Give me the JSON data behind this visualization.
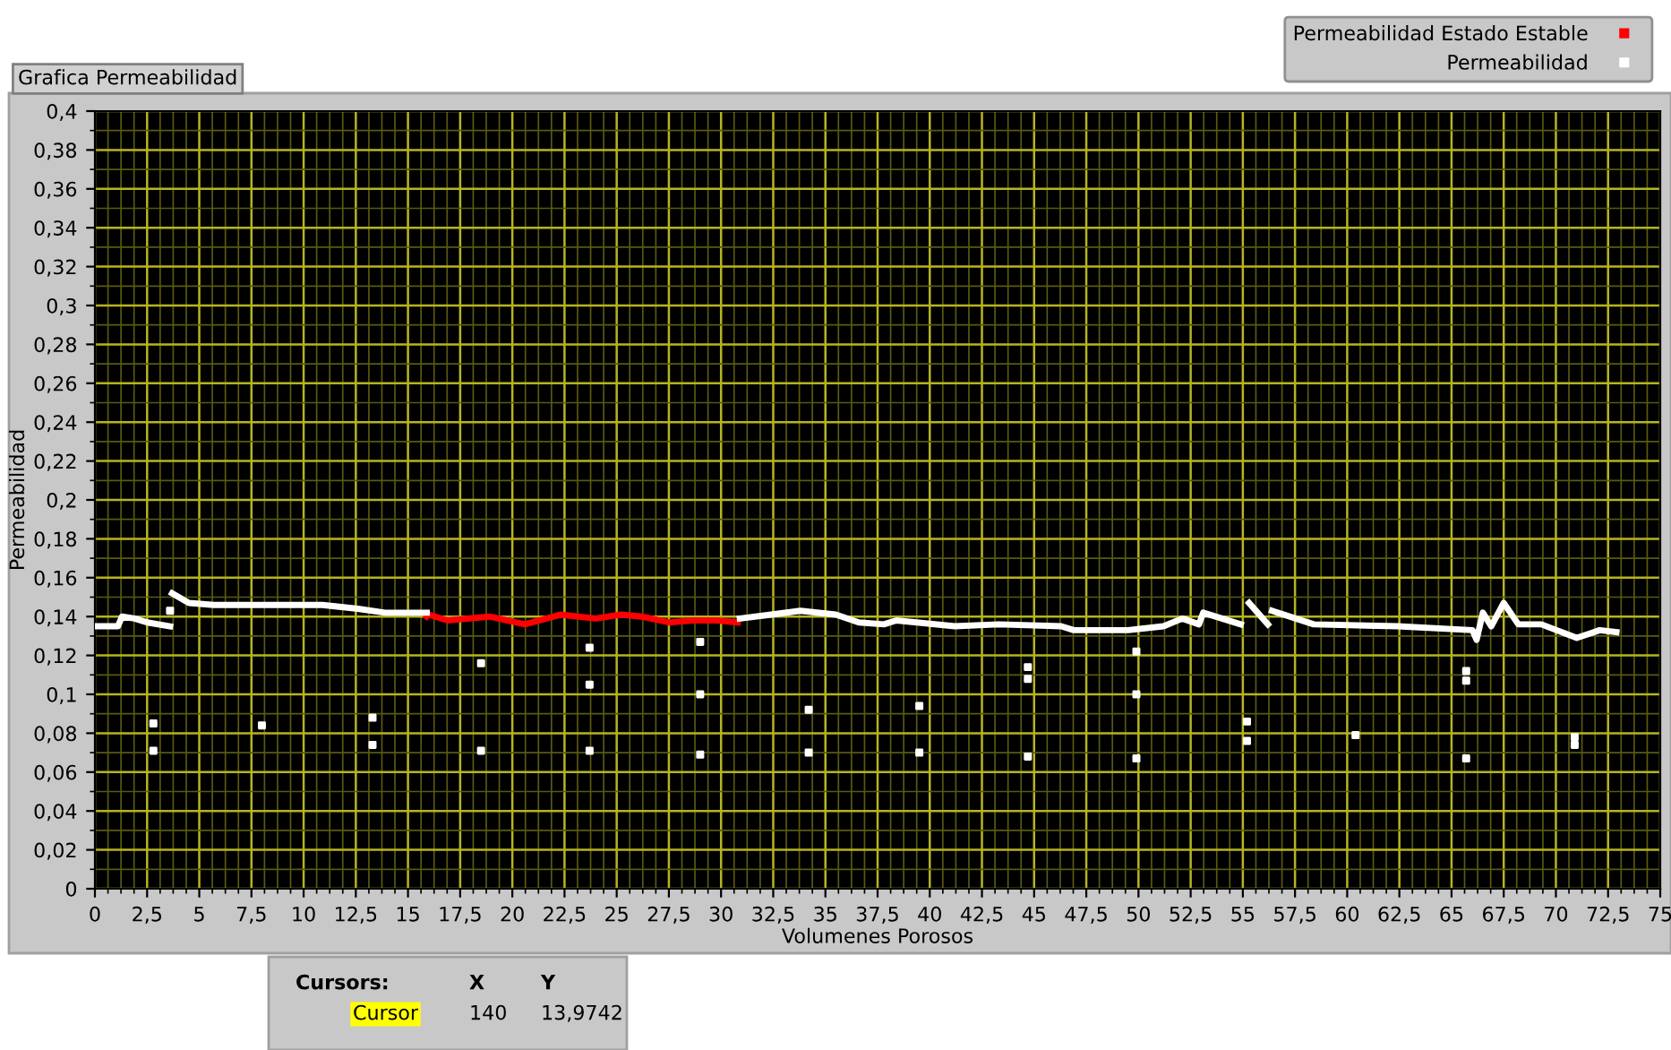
{
  "chart_data": {
    "type": "line",
    "title": "Grafica Permeabilidad",
    "xlabel": "Volumenes Porosos",
    "ylabel": "Permeabilidad",
    "xlim": [
      0,
      75
    ],
    "ylim": [
      0,
      0.4
    ],
    "xticks": [
      0,
      {
        "value": 2.5,
        "label": "2,5"
      },
      5,
      {
        "value": 7.5,
        "label": "7,5"
      },
      10,
      {
        "value": 12.5,
        "label": "12,5"
      },
      15,
      {
        "value": 17.5,
        "label": "17,5"
      },
      20,
      {
        "value": 22.5,
        "label": "22,5"
      },
      25,
      {
        "value": 27.5,
        "label": "27,5"
      },
      30,
      {
        "value": 32.5,
        "label": "32,5"
      },
      35,
      {
        "value": 37.5,
        "label": "37,5"
      },
      40,
      {
        "value": 42.5,
        "label": "42,5"
      },
      45,
      {
        "value": 47.5,
        "label": "47,5"
      },
      50,
      {
        "value": 52.5,
        "label": "52,5"
      },
      55,
      {
        "value": 57.5,
        "label": "57,5"
      },
      60,
      {
        "value": 62.5,
        "label": "62,5"
      },
      65,
      {
        "value": 67.5,
        "label": "67,5"
      },
      70,
      {
        "value": 72.5,
        "label": "72,5"
      },
      75,
      {
        "value": 0.625,
        "label": null
      },
      {
        "value": 1.25,
        "label": null
      },
      {
        "value": 1.875,
        "label": null
      },
      {
        "value": 3.125,
        "label": null
      },
      {
        "value": 3.75,
        "label": null
      },
      {
        "value": 4.375,
        "label": null
      },
      {
        "value": 5.625,
        "label": null
      },
      {
        "value": 6.25,
        "label": null
      },
      {
        "value": 6.875,
        "label": null
      },
      {
        "value": 8.125,
        "label": null
      },
      {
        "value": 8.75,
        "label": null
      },
      {
        "value": 9.375,
        "label": null
      },
      {
        "value": 10.625,
        "label": null
      },
      {
        "value": 11.25,
        "label": null
      },
      {
        "value": 11.875,
        "label": null
      },
      {
        "value": 13.125,
        "label": null
      },
      {
        "value": 13.75,
        "label": null
      },
      {
        "value": 14.375,
        "label": null
      },
      {
        "value": 15.625,
        "label": null
      },
      {
        "value": 16.25,
        "label": null
      },
      {
        "value": 16.875,
        "label": null
      },
      {
        "value": 18.125,
        "label": null
      },
      {
        "value": 18.75,
        "label": null
      },
      {
        "value": 19.375,
        "label": null
      },
      {
        "value": 20.625,
        "label": null
      },
      {
        "value": 21.25,
        "label": null
      },
      {
        "value": 21.875,
        "label": null
      },
      {
        "value": 23.125,
        "label": null
      },
      {
        "value": 23.75,
        "label": null
      },
      {
        "value": 24.375,
        "label": null
      },
      {
        "value": 25.625,
        "label": null
      },
      {
        "value": 26.25,
        "label": null
      },
      {
        "value": 26.875,
        "label": null
      },
      {
        "value": 28.125,
        "label": null
      },
      {
        "value": 28.75,
        "label": null
      },
      {
        "value": 29.375,
        "label": null
      },
      {
        "value": 30.625,
        "label": null
      },
      {
        "value": 31.25,
        "label": null
      },
      {
        "value": 31.875,
        "label": null
      },
      {
        "value": 33.125,
        "label": null
      },
      {
        "value": 33.75,
        "label": null
      },
      {
        "value": 34.375,
        "label": null
      },
      {
        "value": 35.625,
        "label": null
      },
      {
        "value": 36.25,
        "label": null
      },
      {
        "value": 36.875,
        "label": null
      },
      {
        "value": 38.125,
        "label": null
      },
      {
        "value": 38.75,
        "label": null
      },
      {
        "value": 39.375,
        "label": null
      },
      {
        "value": 40.625,
        "label": null
      },
      {
        "value": 41.25,
        "label": null
      },
      {
        "value": 41.875,
        "label": null
      },
      {
        "value": 43.125,
        "label": null
      },
      {
        "value": 43.75,
        "label": null
      },
      {
        "value": 44.375,
        "label": null
      },
      {
        "value": 45.625,
        "label": null
      },
      {
        "value": 46.25,
        "label": null
      },
      {
        "value": 46.875,
        "label": null
      },
      {
        "value": 48.125,
        "label": null
      },
      {
        "value": 48.75,
        "label": null
      },
      {
        "value": 49.375,
        "label": null
      },
      {
        "value": 50.625,
        "label": null
      },
      {
        "value": 51.25,
        "label": null
      },
      {
        "value": 51.875,
        "label": null
      },
      {
        "value": 53.125,
        "label": null
      },
      {
        "value": 53.75,
        "label": null
      },
      {
        "value": 54.375,
        "label": null
      },
      {
        "value": 55.625,
        "label": null
      },
      {
        "value": 56.25,
        "label": null
      },
      {
        "value": 56.875,
        "label": null
      },
      {
        "value": 58.125,
        "label": null
      },
      {
        "value": 58.75,
        "label": null
      },
      {
        "value": 59.375,
        "label": null
      },
      {
        "value": 60.625,
        "label": null
      },
      {
        "value": 61.25,
        "label": null
      },
      {
        "value": 61.875,
        "label": null
      },
      {
        "value": 63.125,
        "label": null
      },
      {
        "value": 63.75,
        "label": null
      },
      {
        "value": 64.375,
        "label": null
      },
      {
        "value": 65.625,
        "label": null
      },
      {
        "value": 66.25,
        "label": null
      },
      {
        "value": 66.875,
        "label": null
      },
      {
        "value": 68.125,
        "label": null
      },
      {
        "value": 68.75,
        "label": null
      },
      {
        "value": 69.375,
        "label": null
      },
      {
        "value": 70.625,
        "label": null
      },
      {
        "value": 71.25,
        "label": null
      },
      {
        "value": 71.875,
        "label": null
      },
      {
        "value": 73.125,
        "label": null
      },
      {
        "value": 73.75,
        "label": null
      },
      {
        "value": 74.375,
        "label": null
      }
    ],
    "yticks": [
      0,
      {
        "value": 0.02,
        "label": "0,02"
      },
      {
        "value": 0.04,
        "label": "0,04"
      },
      {
        "value": 0.06,
        "label": "0,06"
      },
      {
        "value": 0.08,
        "label": "0,08"
      },
      {
        "value": 0.1,
        "label": "0,1"
      },
      {
        "value": 0.12,
        "label": "0,12"
      },
      {
        "value": 0.14,
        "label": "0,14"
      },
      {
        "value": 0.16,
        "label": "0,16"
      },
      {
        "value": 0.18,
        "label": "0,18"
      },
      {
        "value": 0.2,
        "label": "0,2"
      },
      {
        "value": 0.22,
        "label": "0,22"
      },
      {
        "value": 0.24,
        "label": "0,24"
      },
      {
        "value": 0.26,
        "label": "0,26"
      },
      {
        "value": 0.28,
        "label": "0,28"
      },
      {
        "value": 0.3,
        "label": "0,3"
      },
      {
        "value": 0.32,
        "label": "0,32"
      },
      {
        "value": 0.34,
        "label": "0,34"
      },
      {
        "value": 0.36,
        "label": "0,36"
      },
      {
        "value": 0.38,
        "label": "0,38"
      },
      {
        "value": 0.4,
        "label": "0,4"
      },
      {
        "value": 0.01,
        "label": null
      },
      {
        "value": 0.03,
        "label": null
      },
      {
        "value": 0.05,
        "label": null
      },
      {
        "value": 0.07,
        "label": null
      },
      {
        "value": 0.09,
        "label": null
      },
      {
        "value": 0.11,
        "label": null
      },
      {
        "value": 0.13,
        "label": null
      },
      {
        "value": 0.15,
        "label": null
      },
      {
        "value": 0.17,
        "label": null
      },
      {
        "value": 0.19,
        "label": null
      },
      {
        "value": 0.21,
        "label": null
      },
      {
        "value": 0.23,
        "label": null
      },
      {
        "value": 0.25,
        "label": null
      },
      {
        "value": 0.27,
        "label": null
      },
      {
        "value": 0.29,
        "label": null
      },
      {
        "value": 0.31,
        "label": null
      },
      {
        "value": 0.33,
        "label": null
      },
      {
        "value": 0.35,
        "label": null
      },
      {
        "value": 0.37,
        "label": null
      },
      {
        "value": 0.39,
        "label": null
      }
    ],
    "grid": true,
    "legend": "top right",
    "series": [
      {
        "name": "Permeabilidad Estado Estable",
        "color": "#ff0000",
        "x": [
          15.9,
          16.0,
          16.9,
          18.9,
          20.6,
          22.3,
          24.0,
          25.2,
          26.2,
          27.5,
          28.7,
          29.8,
          30.8
        ],
        "values": [
          0.14,
          0.141,
          0.138,
          0.14,
          0.136,
          0.141,
          0.139,
          0.141,
          0.14,
          0.137,
          0.138,
          0.138,
          0.137
        ]
      },
      {
        "name": "Permeabilidad",
        "color": "#ffffff",
        "x": [
          0.1,
          1.1,
          1.3,
          1.9,
          2.5,
          3.6,
          3.65,
          3.7,
          4.5,
          5.7,
          8.3,
          10.9,
          12.6,
          13.9,
          15.9,
          16.0,
          30.9,
          32.4,
          33.8,
          35.5,
          36.6,
          37.8,
          38.4,
          41.2,
          43.3,
          46.3,
          46.9,
          48.5,
          49.5,
          51.2,
          52.1,
          52.9,
          53.1,
          54.9,
          55.0,
          55.3,
          56.2,
          56.3,
          56.4,
          58.4,
          62.4,
          66.0,
          66.2,
          66.5,
          66.9,
          67.5,
          68.2,
          69.3,
          71.0,
          72.1,
          72.9
        ],
        "values": [
          0.135,
          0.135,
          0.14,
          0.139,
          0.137,
          0.135,
          null,
          0.152,
          0.147,
          0.146,
          0.146,
          0.146,
          0.144,
          0.142,
          0.142,
          null,
          0.139,
          0.141,
          0.143,
          0.141,
          0.137,
          0.136,
          0.138,
          0.135,
          0.136,
          0.135,
          0.133,
          0.133,
          0.133,
          0.135,
          0.139,
          0.136,
          0.142,
          0.136,
          null,
          0.147,
          0.136,
          null,
          0.143,
          0.136,
          0.135,
          0.133,
          0.128,
          0.142,
          0.135,
          0.147,
          0.136,
          0.136,
          0.129,
          0.133,
          0.132
        ]
      },
      {
        "type": "scatter",
        "color": "#ffffff",
        "x": [
          2.8,
          2.8,
          3.6,
          8,
          13.3,
          13.3,
          18.5,
          18.5,
          23.7,
          23.7,
          23.7,
          29,
          29,
          29,
          34.2,
          34.2,
          39.5,
          39.5,
          44.7,
          44.7,
          44.7,
          49.9,
          49.9,
          49.9,
          55.2,
          55.2,
          60.4,
          65.7,
          65.7,
          65.7,
          70.9,
          70.9
        ],
        "values": [
          0.085,
          0.071,
          0.143,
          0.084,
          0.088,
          0.074,
          0.116,
          0.071,
          0.124,
          0.105,
          0.071,
          0.127,
          0.1,
          0.069,
          0.092,
          0.07,
          0.094,
          0.07,
          0.114,
          0.108,
          0.068,
          0.122,
          0.1,
          0.067,
          0.086,
          0.076,
          0.079,
          0.112,
          0.107,
          0.067,
          0.078,
          0.074
        ]
      }
    ],
    "annotations": [
      "Cursors:",
      "X",
      "Y",
      "Cursor",
      "140",
      "13,9742"
    ]
  }
}
